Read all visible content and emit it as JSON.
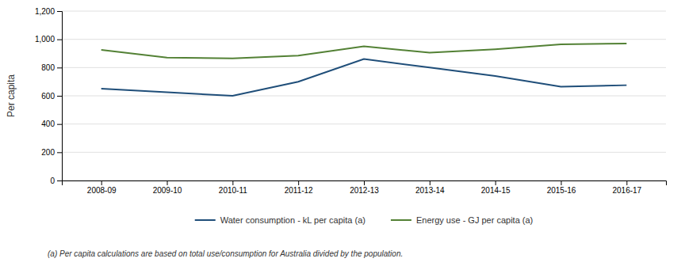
{
  "chart_data": {
    "type": "line",
    "categories": [
      "2008-09",
      "2009-10",
      "2010-11",
      "2011-12",
      "2012-13",
      "2013-14",
      "2014-15",
      "2015-16",
      "2016-17"
    ],
    "series": [
      {
        "name": "Water consumption - kL per capita (a)",
        "color": "#1f4e79",
        "values": [
          650,
          625,
          600,
          700,
          860,
          800,
          740,
          665,
          675
        ]
      },
      {
        "name": "Energy use - GJ per capita  (a)",
        "color": "#538135",
        "values": [
          925,
          870,
          865,
          885,
          950,
          905,
          930,
          965,
          970
        ]
      }
    ],
    "y_label": "Per capita",
    "ylim": [
      0,
      1200
    ],
    "yticks": [
      0,
      200,
      400,
      600,
      800,
      {
        "value": 1000,
        "label": "1,000"
      },
      {
        "value": 1200,
        "label": "1,200"
      }
    ],
    "grid": true,
    "legend": "bottom",
    "annotations": [
      "(a) Per capita calculations are based on total use/consumption for Australia divided by the population."
    ]
  }
}
